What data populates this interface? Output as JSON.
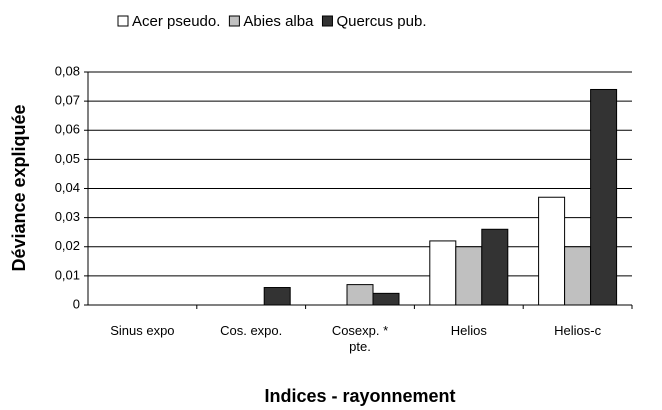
{
  "chart_data": {
    "type": "bar",
    "xlabel": "Indices - rayonnement",
    "ylabel": "Déviance expliquée",
    "categories": [
      "Sinus expo",
      "Cos. expo.",
      "Cosexp. * pte.",
      "Helios",
      "Helios-c"
    ],
    "series": [
      {
        "name": "Acer pseudo.",
        "color": "#ffffff",
        "values": [
          0,
          0,
          0,
          0.022,
          0.037
        ]
      },
      {
        "name": "Abies alba",
        "color": "#c0c0c0",
        "values": [
          0,
          0,
          0.007,
          0.02,
          0.02
        ]
      },
      {
        "name": "Quercus pub.",
        "color": "#333333",
        "values": [
          0,
          0.006,
          0.004,
          0.026,
          0.074
        ]
      }
    ],
    "ylim": [
      0,
      0.08
    ],
    "yticks": [
      0,
      {
        "value": 0.01,
        "label": "0,01"
      },
      {
        "value": 0.02,
        "label": "0,02"
      },
      {
        "value": 0.03,
        "label": "0,03"
      },
      {
        "value": 0.04,
        "label": "0,04"
      },
      {
        "value": 0.05,
        "label": "0,05"
      },
      {
        "value": 0.06,
        "label": "0,06"
      },
      {
        "value": 0.07,
        "label": "0,07"
      },
      {
        "value": 0.08,
        "label": "0,08"
      }
    ],
    "grid": true,
    "legend": "top"
  }
}
